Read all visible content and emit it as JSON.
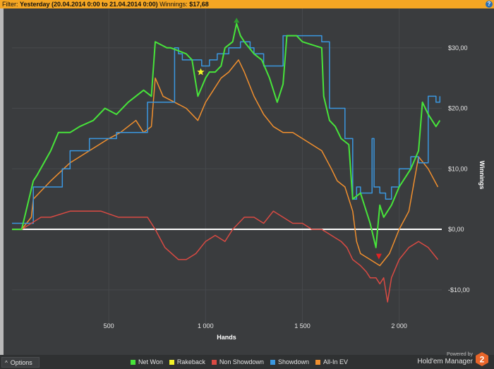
{
  "filter": {
    "prefix": "Filter:",
    "period": "Yesterday (20.04.2014 0:00 to 21.04.2014 0:00)",
    "winnings_label": "Winnings:",
    "winnings_value": "$17,68",
    "help_glyph": "?"
  },
  "options_button": {
    "glyph": "^",
    "label": "Options"
  },
  "branding": {
    "line1": "Powered by",
    "line2": "Hold'em Manager",
    "badge": "2"
  },
  "icons": {
    "help": "help-icon",
    "options_caret": "caret-up-icon",
    "logo": "holdem-manager-logo-icon",
    "max_marker": "triangle-up-icon",
    "min_marker": "triangle-down-icon",
    "rakeback_marker": "star-icon"
  },
  "colors": {
    "filter_bar": "#f5a623",
    "net_won": "#47e43a",
    "rakeback": "#f2f22a",
    "non_showdown": "#d94a43",
    "showdown": "#3a97e0",
    "all_in_ev": "#f08f2e",
    "zero_line": "#ffffff",
    "background": "#3a3c3e"
  },
  "chart_data": {
    "type": "line",
    "xlabel": "Hands",
    "ylabel": "Winnings",
    "xlim": [
      0,
      2220
    ],
    "ylim": [
      -15.5,
      36.5
    ],
    "x_ticks": [
      500,
      1000,
      1500,
      2000
    ],
    "x_tick_labels": [
      "500",
      "1 000",
      "1 500",
      "2 000"
    ],
    "y_ticks": [
      30,
      20,
      10,
      0,
      -10
    ],
    "y_tick_labels": [
      "$30,00",
      "$20,00",
      "$10,00",
      "$0,00",
      "-$10,00"
    ],
    "legend_position": "bottom",
    "series": [
      {
        "name": "Net Won",
        "color_key": "net_won",
        "x": [
          0,
          50,
          110,
          130,
          200,
          240,
          300,
          350,
          420,
          480,
          540,
          600,
          680,
          720,
          740,
          800,
          820,
          900,
          930,
          960,
          1000,
          1020,
          1050,
          1080,
          1100,
          1140,
          1160,
          1180,
          1200,
          1250,
          1290,
          1330,
          1370,
          1400,
          1420,
          1470,
          1500,
          1600,
          1610,
          1640,
          1670,
          1700,
          1740,
          1760,
          1800,
          1850,
          1880,
          1900,
          1920,
          1960,
          2000,
          2040,
          2060,
          2100,
          2120,
          2150,
          2190,
          2210
        ],
        "y": [
          0,
          0,
          8,
          9,
          13,
          16,
          16,
          17,
          18,
          20,
          19,
          21,
          23,
          22,
          31,
          30,
          30,
          29,
          28,
          22,
          25,
          26,
          26,
          27,
          30,
          31,
          34,
          32,
          31,
          29,
          28,
          25,
          21,
          24,
          32,
          32,
          31,
          30,
          22,
          18,
          17,
          15,
          14,
          5,
          6,
          1,
          -3,
          4,
          2,
          4,
          7,
          9,
          10,
          13,
          21,
          19,
          17,
          18
        ]
      },
      {
        "name": "Rakeback",
        "color_key": "rakeback",
        "x": [
          0,
          2210
        ],
        "y": [
          0,
          0
        ]
      },
      {
        "name": "Non Showdown",
        "color_key": "non_showdown",
        "x": [
          0,
          50,
          100,
          150,
          200,
          300,
          400,
          460,
          550,
          620,
          700,
          740,
          790,
          860,
          900,
          950,
          1000,
          1050,
          1100,
          1140,
          1200,
          1250,
          1300,
          1350,
          1400,
          1450,
          1500,
          1550,
          1600,
          1650,
          1700,
          1730,
          1760,
          1800,
          1830,
          1850,
          1880,
          1900,
          1920,
          1940,
          1960,
          2000,
          2050,
          2100,
          2150,
          2200
        ],
        "y": [
          0,
          0,
          1,
          2,
          2,
          3,
          3,
          3,
          2,
          2,
          2,
          0,
          -3,
          -5,
          -5,
          -4,
          -2,
          -1,
          -2,
          0,
          2,
          2,
          1,
          3,
          2,
          1,
          1,
          0,
          0,
          -1,
          -2,
          -3,
          -5,
          -6,
          -7,
          -8,
          -8,
          -9,
          -8,
          -12,
          -8,
          -5,
          -3,
          -2,
          -3,
          -5
        ]
      },
      {
        "name": "Showdown",
        "color_key": "showdown",
        "x": [
          0,
          100,
          110,
          200,
          260,
          300,
          400,
          540,
          700,
          740,
          840,
          860,
          880,
          980,
          1020,
          1060,
          1120,
          1180,
          1230,
          1250,
          1300,
          1400,
          1410,
          1600,
          1640,
          1700,
          1720,
          1760,
          1780,
          1800,
          1860,
          1870,
          1900,
          1930,
          1960,
          2000,
          2060,
          2100,
          2150,
          2190,
          2210
        ],
        "y": [
          1,
          1,
          7,
          7,
          10,
          13,
          15,
          16,
          21,
          21,
          30,
          29,
          28,
          27,
          28,
          29,
          30,
          31,
          30,
          29,
          27,
          32,
          32,
          31,
          20,
          20,
          15,
          5,
          7,
          6,
          15,
          7,
          6,
          5,
          7,
          10,
          12,
          11,
          22,
          21,
          22
        ]
      },
      {
        "name": "All-In EV",
        "color_key": "all_in_ev",
        "x": [
          0,
          50,
          100,
          110,
          140,
          200,
          300,
          400,
          500,
          560,
          640,
          680,
          720,
          740,
          780,
          840,
          900,
          960,
          1000,
          1040,
          1080,
          1120,
          1170,
          1200,
          1250,
          1300,
          1350,
          1400,
          1450,
          1500,
          1550,
          1600,
          1650,
          1680,
          1720,
          1760,
          1780,
          1800,
          1850,
          1900,
          1950,
          2000,
          2050,
          2100,
          2150,
          2200
        ],
        "y": [
          0,
          0,
          2,
          5,
          6,
          8,
          11,
          13,
          15,
          16,
          18,
          16,
          17,
          25,
          22,
          21,
          20,
          18,
          21,
          23,
          25,
          26,
          28,
          26,
          22,
          19,
          17,
          16,
          16,
          15,
          14,
          13,
          10,
          8,
          7,
          3,
          -2,
          -4,
          -5,
          -6,
          -4,
          0,
          3,
          12,
          10,
          7
        ]
      }
    ],
    "markers": [
      {
        "type": "triangle-up",
        "x": 1160,
        "y": 34.5,
        "color": "#2e9e2e"
      },
      {
        "type": "star",
        "x": 975,
        "y": 26,
        "color": "#f2f22a"
      },
      {
        "type": "triangle-down",
        "x": 1895,
        "y": -4.5,
        "color": "#e52222"
      }
    ]
  },
  "legend": [
    {
      "label": "Net Won",
      "color_key": "net_won"
    },
    {
      "label": "Rakeback",
      "color_key": "rakeback"
    },
    {
      "label": "Non Showdown",
      "color_key": "non_showdown"
    },
    {
      "label": "Showdown",
      "color_key": "showdown"
    },
    {
      "label": "All-In EV",
      "color_key": "all_in_ev"
    }
  ]
}
